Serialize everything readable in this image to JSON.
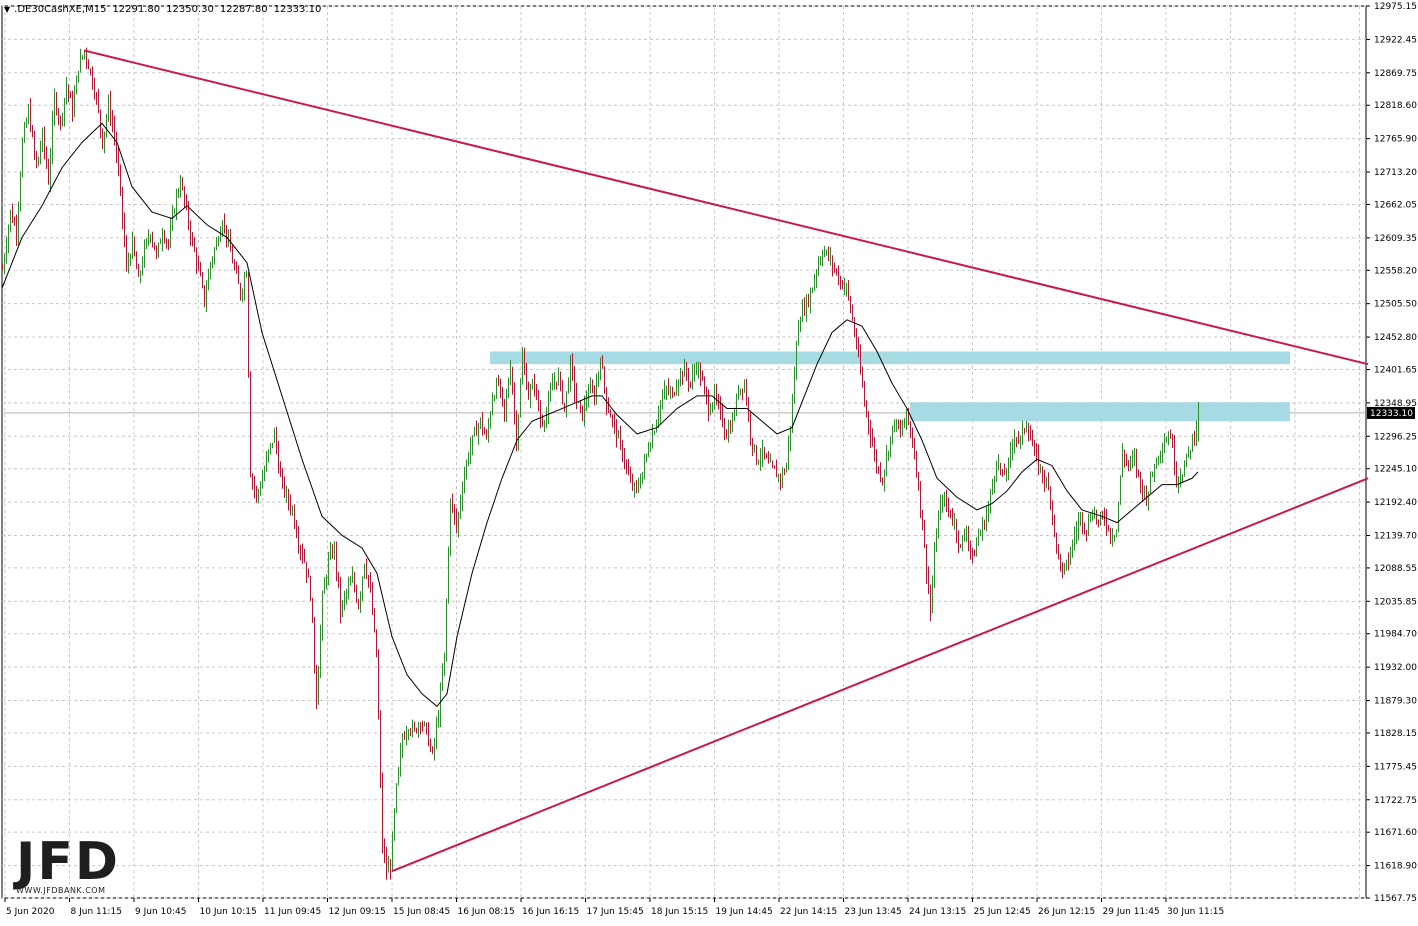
{
  "header": {
    "menu_icon": "dropdown-triangle-icon",
    "symbol": ".DE30CashXE,M15",
    "open": "12291.80",
    "high": "12350.30",
    "low": "12287.80",
    "close": "12333.10"
  },
  "logo": {
    "text": "JFD",
    "url": "WWW.JFDBANK.COM"
  },
  "colors": {
    "bull": "#2e8b2e",
    "bear": "#b01835",
    "trendline": "#c8194a",
    "zone": "#a7dbe3",
    "ma": "#000000",
    "grid": "#c8c8c8",
    "price_tag_bg": "#000000",
    "price_tag_text": "#ffffff"
  },
  "chart_data": {
    "type": "candlestick",
    "timeframe": "M15",
    "ylim": [
      11567.75,
      12975.15
    ],
    "yticks": [
      "12975.15",
      "12922.45",
      "12869.75",
      "12818.60",
      "12765.90",
      "12713.20",
      "12662.05",
      "12609.35",
      "12558.20",
      "12505.50",
      "12452.80",
      "12401.65",
      "12348.95",
      "12296.25",
      "12245.10",
      "12192.40",
      "12139.70",
      "12088.55",
      "12035.85",
      "11984.70",
      "11932.00",
      "11879.30",
      "11828.15",
      "11775.45",
      "11722.75",
      "11671.60",
      "11618.90",
      "11567.75"
    ],
    "xlabels": [
      "5 Jun 2020",
      "8 Jun 11:15",
      "9 Jun 10:45",
      "10 Jun 10:15",
      "11 Jun 09:45",
      "12 Jun 09:15",
      "15 Jun 08:45",
      "16 Jun 08:15",
      "16 Jun 16:15",
      "17 Jun 15:45",
      "18 Jun 15:15",
      "19 Jun 14:45",
      "22 Jun 14:15",
      "23 Jun 13:45",
      "24 Jun 13:15",
      "25 Jun 12:45",
      "26 Jun 12:15",
      "29 Jun 11:45",
      "30 Jun 11:15"
    ],
    "current_price": "12333.10",
    "price_path": [
      [
        0,
        12560
      ],
      [
        8,
        12650
      ],
      [
        14,
        12620
      ],
      [
        20,
        12760
      ],
      [
        26,
        12810
      ],
      [
        34,
        12720
      ],
      [
        40,
        12770
      ],
      [
        46,
        12700
      ],
      [
        52,
        12830
      ],
      [
        58,
        12790
      ],
      [
        64,
        12850
      ],
      [
        70,
        12810
      ],
      [
        76,
        12880
      ],
      [
        82,
        12905
      ],
      [
        88,
        12870
      ],
      [
        94,
        12830
      ],
      [
        100,
        12760
      ],
      [
        106,
        12820
      ],
      [
        112,
        12770
      ],
      [
        118,
        12680
      ],
      [
        124,
        12560
      ],
      [
        130,
        12600
      ],
      [
        136,
        12540
      ],
      [
        142,
        12590
      ],
      [
        148,
        12620
      ],
      [
        154,
        12580
      ],
      [
        160,
        12620
      ],
      [
        166,
        12600
      ],
      [
        172,
        12660
      ],
      [
        178,
        12700
      ],
      [
        184,
        12650
      ],
      [
        190,
        12600
      ],
      [
        196,
        12560
      ],
      [
        202,
        12510
      ],
      [
        208,
        12570
      ],
      [
        214,
        12600
      ],
      [
        220,
        12640
      ],
      [
        226,
        12600
      ],
      [
        232,
        12560
      ],
      [
        238,
        12520
      ],
      [
        244,
        12560
      ],
      [
        248,
        12240
      ],
      [
        254,
        12200
      ],
      [
        260,
        12230
      ],
      [
        266,
        12270
      ],
      [
        272,
        12300
      ],
      [
        278,
        12230
      ],
      [
        284,
        12200
      ],
      [
        290,
        12180
      ],
      [
        296,
        12130
      ],
      [
        302,
        12100
      ],
      [
        308,
        12050
      ],
      [
        314,
        11880
      ],
      [
        320,
        12040
      ],
      [
        326,
        12100
      ],
      [
        332,
        12120
      ],
      [
        338,
        12020
      ],
      [
        344,
        12050
      ],
      [
        350,
        12070
      ],
      [
        356,
        12030
      ],
      [
        362,
        12100
      ],
      [
        368,
        12050
      ],
      [
        374,
        11950
      ],
      [
        380,
        11650
      ],
      [
        384,
        11610
      ],
      [
        388,
        11620
      ],
      [
        394,
        11740
      ],
      [
        400,
        11820
      ],
      [
        406,
        11840
      ],
      [
        412,
        11830
      ],
      [
        418,
        11850
      ],
      [
        424,
        11830
      ],
      [
        430,
        11790
      ],
      [
        436,
        11860
      ],
      [
        442,
        11950
      ],
      [
        448,
        12200
      ],
      [
        454,
        12150
      ],
      [
        460,
        12220
      ],
      [
        466,
        12270
      ],
      [
        472,
        12300
      ],
      [
        478,
        12320
      ],
      [
        484,
        12290
      ],
      [
        490,
        12360
      ],
      [
        496,
        12380
      ],
      [
        502,
        12330
      ],
      [
        508,
        12410
      ],
      [
        514,
        12290
      ],
      [
        520,
        12420
      ],
      [
        526,
        12360
      ],
      [
        532,
        12380
      ],
      [
        538,
        12320
      ],
      [
        544,
        12330
      ],
      [
        550,
        12380
      ],
      [
        556,
        12390
      ],
      [
        562,
        12340
      ],
      [
        568,
        12410
      ],
      [
        574,
        12350
      ],
      [
        580,
        12330
      ],
      [
        586,
        12370
      ],
      [
        592,
        12360
      ],
      [
        598,
        12420
      ],
      [
        604,
        12350
      ],
      [
        610,
        12320
      ],
      [
        616,
        12290
      ],
      [
        622,
        12260
      ],
      [
        628,
        12220
      ],
      [
        634,
        12210
      ],
      [
        640,
        12240
      ],
      [
        646,
        12280
      ],
      [
        652,
        12310
      ],
      [
        658,
        12350
      ],
      [
        664,
        12370
      ],
      [
        670,
        12360
      ],
      [
        676,
        12390
      ],
      [
        682,
        12400
      ],
      [
        688,
        12380
      ],
      [
        694,
        12410
      ],
      [
        700,
        12380
      ],
      [
        706,
        12340
      ],
      [
        712,
        12360
      ],
      [
        718,
        12330
      ],
      [
        724,
        12300
      ],
      [
        730,
        12320
      ],
      [
        736,
        12370
      ],
      [
        742,
        12380
      ],
      [
        748,
        12300
      ],
      [
        754,
        12260
      ],
      [
        760,
        12270
      ],
      [
        766,
        12250
      ],
      [
        772,
        12240
      ],
      [
        778,
        12230
      ],
      [
        784,
        12250
      ],
      [
        790,
        12350
      ],
      [
        796,
        12480
      ],
      [
        802,
        12500
      ],
      [
        808,
        12520
      ],
      [
        814,
        12560
      ],
      [
        820,
        12590
      ],
      [
        826,
        12580
      ],
      [
        832,
        12560
      ],
      [
        838,
        12540
      ],
      [
        844,
        12530
      ],
      [
        850,
        12480
      ],
      [
        856,
        12420
      ],
      [
        862,
        12350
      ],
      [
        868,
        12300
      ],
      [
        874,
        12250
      ],
      [
        880,
        12230
      ],
      [
        886,
        12280
      ],
      [
        892,
        12320
      ],
      [
        898,
        12300
      ],
      [
        904,
        12330
      ],
      [
        910,
        12290
      ],
      [
        916,
        12220
      ],
      [
        922,
        12120
      ],
      [
        928,
        12020
      ],
      [
        934,
        12150
      ],
      [
        940,
        12200
      ],
      [
        946,
        12180
      ],
      [
        952,
        12160
      ],
      [
        958,
        12120
      ],
      [
        964,
        12150
      ],
      [
        970,
        12100
      ],
      [
        976,
        12140
      ],
      [
        982,
        12160
      ],
      [
        988,
        12200
      ],
      [
        994,
        12260
      ],
      [
        1000,
        12230
      ],
      [
        1006,
        12250
      ],
      [
        1012,
        12300
      ],
      [
        1018,
        12290
      ],
      [
        1024,
        12320
      ],
      [
        1030,
        12280
      ],
      [
        1036,
        12250
      ],
      [
        1042,
        12230
      ],
      [
        1048,
        12200
      ],
      [
        1054,
        12120
      ],
      [
        1060,
        12080
      ],
      [
        1066,
        12100
      ],
      [
        1072,
        12140
      ],
      [
        1078,
        12170
      ],
      [
        1084,
        12150
      ],
      [
        1090,
        12180
      ],
      [
        1096,
        12160
      ],
      [
        1102,
        12170
      ],
      [
        1108,
        12140
      ],
      [
        1114,
        12150
      ],
      [
        1120,
        12270
      ],
      [
        1126,
        12250
      ],
      [
        1132,
        12260
      ],
      [
        1138,
        12220
      ],
      [
        1144,
        12200
      ],
      [
        1150,
        12240
      ],
      [
        1156,
        12270
      ],
      [
        1162,
        12290
      ],
      [
        1168,
        12300
      ],
      [
        1174,
        12230
      ],
      [
        1180,
        12240
      ],
      [
        1186,
        12270
      ],
      [
        1192,
        12300
      ],
      [
        1196,
        12340
      ]
    ],
    "moving_average": [
      [
        0,
        12530
      ],
      [
        20,
        12610
      ],
      [
        40,
        12660
      ],
      [
        60,
        12720
      ],
      [
        80,
        12760
      ],
      [
        100,
        12790
      ],
      [
        115,
        12760
      ],
      [
        130,
        12690
      ],
      [
        150,
        12650
      ],
      [
        170,
        12640
      ],
      [
        185,
        12660
      ],
      [
        205,
        12630
      ],
      [
        225,
        12610
      ],
      [
        245,
        12570
      ],
      [
        260,
        12460
      ],
      [
        280,
        12360
      ],
      [
        300,
        12260
      ],
      [
        320,
        12170
      ],
      [
        340,
        12140
      ],
      [
        360,
        12120
      ],
      [
        375,
        12080
      ],
      [
        390,
        11980
      ],
      [
        405,
        11920
      ],
      [
        420,
        11890
      ],
      [
        435,
        11870
      ],
      [
        445,
        11890
      ],
      [
        455,
        11980
      ],
      [
        470,
        12080
      ],
      [
        485,
        12160
      ],
      [
        500,
        12230
      ],
      [
        515,
        12290
      ],
      [
        530,
        12320
      ],
      [
        545,
        12330
      ],
      [
        560,
        12340
      ],
      [
        575,
        12350
      ],
      [
        590,
        12360
      ],
      [
        600,
        12360
      ],
      [
        615,
        12330
      ],
      [
        635,
        12300
      ],
      [
        655,
        12310
      ],
      [
        675,
        12340
      ],
      [
        695,
        12360
      ],
      [
        710,
        12360
      ],
      [
        725,
        12340
      ],
      [
        745,
        12340
      ],
      [
        760,
        12320
      ],
      [
        775,
        12300
      ],
      [
        790,
        12310
      ],
      [
        800,
        12350
      ],
      [
        815,
        12410
      ],
      [
        830,
        12460
      ],
      [
        845,
        12480
      ],
      [
        860,
        12470
      ],
      [
        875,
        12430
      ],
      [
        890,
        12380
      ],
      [
        905,
        12340
      ],
      [
        920,
        12290
      ],
      [
        935,
        12230
      ],
      [
        955,
        12200
      ],
      [
        975,
        12180
      ],
      [
        990,
        12190
      ],
      [
        1005,
        12210
      ],
      [
        1020,
        12240
      ],
      [
        1035,
        12260
      ],
      [
        1050,
        12250
      ],
      [
        1065,
        12210
      ],
      [
        1080,
        12180
      ],
      [
        1100,
        12170
      ],
      [
        1115,
        12160
      ],
      [
        1130,
        12180
      ],
      [
        1145,
        12200
      ],
      [
        1160,
        12220
      ],
      [
        1175,
        12220
      ],
      [
        1190,
        12230
      ],
      [
        1196,
        12240
      ]
    ],
    "trendlines": [
      {
        "name": "upper-resistance-trendline",
        "from": [
          82,
          12905
        ],
        "to": [
          1366,
          12410
        ]
      },
      {
        "name": "lower-support-trendline",
        "from": [
          390,
          11610
        ],
        "to": [
          1366,
          12230
        ]
      }
    ],
    "zones": [
      {
        "name": "upper-resistance-zone",
        "x_from": 488,
        "x_to": 1288,
        "y_from": 12410,
        "y_to": 12430
      },
      {
        "name": "lower-resistance-zone",
        "x_from": 908,
        "x_to": 1288,
        "y_from": 12320,
        "y_to": 12350
      }
    ]
  }
}
